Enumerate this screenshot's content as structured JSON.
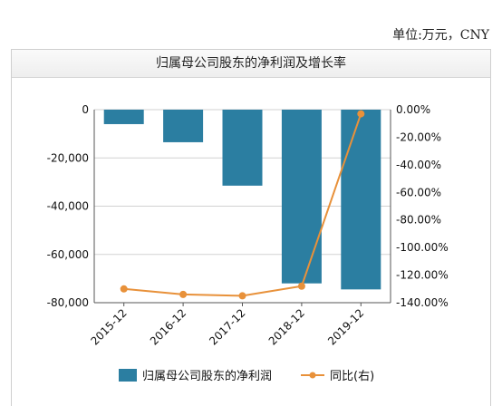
{
  "unit_label": "单位:万元，CNY",
  "chart_data": {
    "type": "bar",
    "title": "归属母公司股东的净利润及增长率",
    "categories": [
      "2015-12",
      "2016-12",
      "2017-12",
      "2018-12",
      "2019-12"
    ],
    "series": [
      {
        "name": "归属母公司股东的净利润",
        "type": "bar",
        "axis": "left",
        "color": "#2b7ea1",
        "values": [
          -6000,
          -13500,
          -31500,
          -72000,
          -74500
        ]
      },
      {
        "name": "同比(右)",
        "type": "line",
        "axis": "right",
        "color": "#e8913a",
        "values": [
          -130,
          -134,
          -135,
          -128,
          -3
        ]
      }
    ],
    "y_left": {
      "ylim": [
        -80000,
        0
      ],
      "ticks": [
        "0",
        "-20,000",
        "-40,000",
        "-60,000",
        "-80,000"
      ],
      "tick_values": [
        0,
        -20000,
        -40000,
        -60000,
        -80000
      ]
    },
    "y_right": {
      "ylim": [
        -140,
        0
      ],
      "ticks": [
        "0.00%",
        "-20.00%",
        "-40.00%",
        "-60.00%",
        "-80.00%",
        "-100.00%",
        "-120.00%",
        "-140.00%"
      ],
      "tick_values": [
        0,
        -20,
        -40,
        -60,
        -80,
        -100,
        -120,
        -140
      ]
    },
    "grid": true,
    "legend": "bottom"
  }
}
